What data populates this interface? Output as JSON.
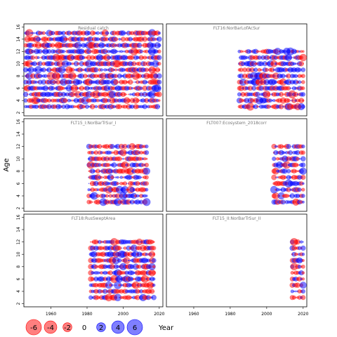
{
  "chart_data": {
    "type": "scatter",
    "subtype": "bubble-residuals",
    "ylabel": "Age",
    "xlabel": "Year",
    "x_ticks": [
      1960,
      1980,
      2000,
      2020
    ],
    "y_ticks": [
      2,
      4,
      6,
      8,
      10,
      12,
      14,
      16
    ],
    "xlim": [
      1945,
      2022
    ],
    "ylim": [
      1.5,
      16.5
    ],
    "colors": {
      "positive": "#0000ff",
      "negative": "#ff0000"
    },
    "legend": {
      "labels": [
        "-6",
        "-4",
        "-2",
        "0",
        "2",
        "4",
        "6"
      ],
      "values": [
        -6,
        -4,
        -2,
        0,
        2,
        4,
        6
      ]
    },
    "panels": [
      {
        "title": "Residual catch",
        "years": [
          1946,
          2020
        ],
        "ages": [
          3,
          15
        ]
      },
      {
        "title": "FLT16:NorBarLofAcSur",
        "years": [
          1985,
          2020
        ],
        "ages": [
          3,
          12
        ]
      },
      {
        "title": "FLT15_I:NorBarTrSur_I",
        "years": [
          1981,
          2013
        ],
        "ages": [
          3,
          12
        ]
      },
      {
        "title": "FLT007:Ecosystem_2018corr",
        "years": [
          2004,
          2020
        ],
        "ages": [
          3,
          12
        ]
      },
      {
        "title": "FLT18:RusSweptArea",
        "years": [
          1982,
          2017
        ],
        "ages": [
          3,
          12
        ]
      },
      {
        "title": "FLT15_II:NorBarTrSur_II",
        "years": [
          2014,
          2020
        ],
        "ages": [
          3,
          12
        ]
      }
    ]
  }
}
